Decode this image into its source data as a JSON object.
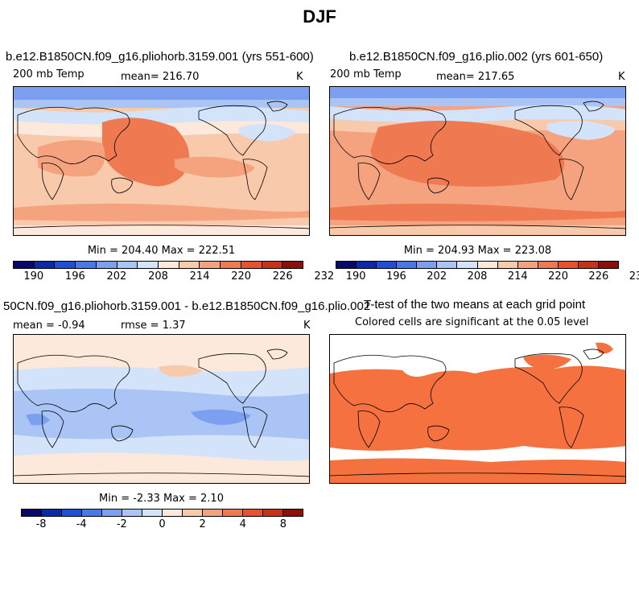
{
  "title": "DJF",
  "panels": {
    "p1": {
      "title": "b.e12.B1850CN.f09_g16.pliohorb.3159.001 (yrs 551-600)",
      "left_label": "200 mb Temp",
      "center_label": "mean= 216.70",
      "units": "K",
      "minmax": "Min = 204.40 Max = 222.51"
    },
    "p2": {
      "title": "b.e12.B1850CN.f09_g16.plio.002 (yrs 601-650)",
      "left_label": "200 mb Temp",
      "center_label": "mean= 217.65",
      "units": "K",
      "minmax": "Min = 204.93 Max = 223.08"
    },
    "p3": {
      "title": "50CN.f09_g16.pliohorb.3159.001 - b.e12.B1850CN.f09_g16.plio.002",
      "mean_label": "mean =   -0.94",
      "rmse_label": "rmse =    1.37",
      "units": "K",
      "minmax": "Min =  -2.33 Max =   2.10"
    },
    "p4": {
      "title": "T-test of the two means at each grid point",
      "subtitle": "Colored cells are significant at the 0.05 level"
    }
  },
  "colorbars": {
    "temp": {
      "colors": [
        "#08086b",
        "#0a2aa8",
        "#1f4fd6",
        "#4a78e8",
        "#7ca0ef",
        "#a9c4f5",
        "#d3e3fa",
        "#fce9db",
        "#f8c9ab",
        "#f5a27e",
        "#ef7a52",
        "#e8522e",
        "#c83218",
        "#8c0f0a"
      ],
      "labels": [
        "190",
        "196",
        "202",
        "208",
        "214",
        "220",
        "226",
        "232"
      ]
    },
    "diff": {
      "colors": [
        "#08086b",
        "#0a2aa8",
        "#1f4fd6",
        "#4a78e8",
        "#7ca0ef",
        "#a9c4f5",
        "#d3e3fa",
        "#fce9db",
        "#f8c9ab",
        "#f5a27e",
        "#ef7a52",
        "#e8522e",
        "#c83218",
        "#8c0f0a"
      ],
      "labels": [
        "-8",
        "-4",
        "-2",
        "0",
        "2",
        "4",
        "8"
      ]
    }
  },
  "ttest_color": "#f5713f"
}
